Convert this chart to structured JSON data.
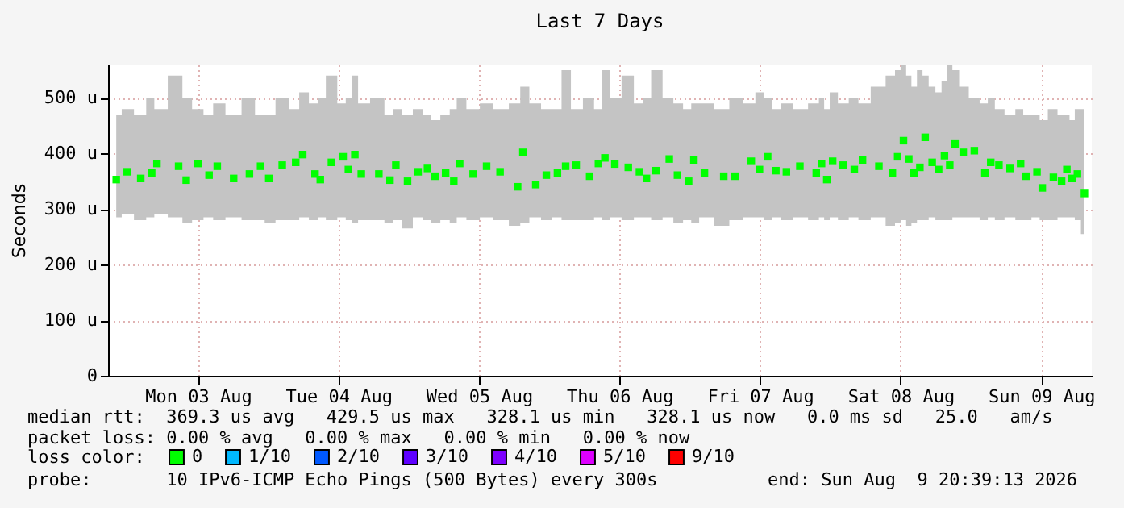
{
  "chart_data": {
    "type": "scatter",
    "title": "Last 7 Days",
    "ylabel": "Seconds",
    "legend_title": "loss color:",
    "legend": "bottom",
    "marker": "square",
    "grid": true,
    "xlim": [
      "2026-08-02T20:39",
      "2026-08-09T20:39"
    ],
    "xticks": [
      {
        "value": "2026-08-03T12:00",
        "label": "Mon 03 Aug"
      },
      {
        "value": "2026-08-04T12:00",
        "label": "Tue 04 Aug"
      },
      {
        "value": "2026-08-05T12:00",
        "label": "Wed 05 Aug"
      },
      {
        "value": "2026-08-06T12:00",
        "label": "Thu 06 Aug"
      },
      {
        "value": "2026-08-07T12:00",
        "label": "Fri 07 Aug"
      },
      {
        "value": "2026-08-08T12:00",
        "label": "Sat 08 Aug"
      },
      {
        "value": "2026-08-09T12:00",
        "label": "Sun 09 Aug"
      }
    ],
    "ylim": [
      0,
      560
    ],
    "yticks": [
      0,
      {
        "value": 100,
        "label": "100 u"
      },
      {
        "value": 200,
        "label": "200 u"
      },
      {
        "value": 300,
        "label": "300 u"
      },
      {
        "value": 400,
        "label": "400 u"
      },
      {
        "value": 500,
        "label": "500 u"
      }
    ],
    "x": [
      "2026-08-02T22:03",
      "2026-08-02T23:55",
      "2026-08-03T02:14",
      "2026-08-03T04:06",
      "2026-08-03T05:00",
      "2026-08-03T08:42",
      "2026-08-03T10:00",
      "2026-08-03T12:00",
      "2026-08-03T13:54",
      "2026-08-03T15:18",
      "2026-08-03T18:06",
      "2026-08-03T20:48",
      "2026-08-03T22:42",
      "2026-08-04T00:06",
      "2026-08-04T02:24",
      "2026-08-04T04:42",
      "2026-08-04T05:54",
      "2026-08-04T08:00",
      "2026-08-04T08:54",
      "2026-08-04T10:48",
      "2026-08-04T12:48",
      "2026-08-04T13:42",
      "2026-08-04T14:48",
      "2026-08-04T15:54",
      "2026-08-04T18:54",
      "2026-08-04T20:48",
      "2026-08-04T21:48",
      "2026-08-04T23:48",
      "2026-08-05T01:36",
      "2026-08-05T03:12",
      "2026-08-05T04:30",
      "2026-08-05T06:18",
      "2026-08-05T07:42",
      "2026-08-05T08:42",
      "2026-08-05T11:00",
      "2026-08-05T13:18",
      "2026-08-05T15:36",
      "2026-08-05T18:36",
      "2026-08-05T19:30",
      "2026-08-05T21:42",
      "2026-08-05T23:30",
      "2026-08-06T01:24",
      "2026-08-06T02:48",
      "2026-08-06T04:36",
      "2026-08-06T06:54",
      "2026-08-06T08:24",
      "2026-08-06T09:30",
      "2026-08-06T11:12",
      "2026-08-06T13:30",
      "2026-08-06T15:24",
      "2026-08-06T16:36",
      "2026-08-06T18:12",
      "2026-08-06T20:30",
      "2026-08-06T21:54",
      "2026-08-06T23:48",
      "2026-08-07T00:42",
      "2026-08-07T02:30",
      "2026-08-07T05:48",
      "2026-08-07T07:42",
      "2026-08-07T10:30",
      "2026-08-07T11:54",
      "2026-08-07T13:18",
      "2026-08-07T14:42",
      "2026-08-07T16:30",
      "2026-08-07T18:48",
      "2026-08-07T21:36",
      "2026-08-07T22:30",
      "2026-08-07T23:24",
      "2026-08-08T00:24",
      "2026-08-08T02:12",
      "2026-08-08T04:06",
      "2026-08-08T05:30",
      "2026-08-08T08:18",
      "2026-08-08T10:36",
      "2026-08-08T11:30",
      "2026-08-08T12:30",
      "2026-08-08T13:24",
      "2026-08-08T14:18",
      "2026-08-08T15:18",
      "2026-08-08T16:12",
      "2026-08-08T17:24",
      "2026-08-08T18:30",
      "2026-08-08T19:30",
      "2026-08-08T20:24",
      "2026-08-08T21:18",
      "2026-08-08T22:42",
      "2026-08-09T00:36",
      "2026-08-09T02:24",
      "2026-08-09T03:24",
      "2026-08-09T04:48",
      "2026-08-09T06:42",
      "2026-08-09T08:30",
      "2026-08-09T09:24",
      "2026-08-09T11:18",
      "2026-08-09T12:12",
      "2026-08-09T14:06",
      "2026-08-09T15:30",
      "2026-08-09T16:24",
      "2026-08-09T17:18",
      "2026-08-09T18:12",
      "2026-08-09T19:24"
    ],
    "series": [
      {
        "name": "0",
        "color": "#00ff00",
        "values": [
          353,
          367,
          355,
          365,
          382,
          377,
          352,
          382,
          361,
          377,
          355,
          363,
          377,
          355,
          379,
          384,
          398,
          363,
          353,
          384,
          394,
          371,
          398,
          363,
          363,
          352,
          379,
          350,
          367,
          373,
          359,
          365,
          350,
          382,
          363,
          377,
          367,
          340,
          402,
          344,
          361,
          365,
          377,
          379,
          359,
          382,
          392,
          381,
          375,
          367,
          355,
          369,
          390,
          361,
          350,
          388,
          365,
          359,
          359,
          386,
          371,
          394,
          369,
          367,
          377,
          365,
          382,
          353,
          386,
          379,
          371,
          388,
          377,
          365,
          394,
          423,
          390,
          365,
          375,
          429,
          384,
          371,
          396,
          379,
          417,
          402,
          405,
          365,
          384,
          379,
          373,
          382,
          359,
          367,
          338,
          357,
          350,
          371,
          355,
          363,
          328
        ],
        "lower": [
          285,
          290,
          280,
          285,
          290,
          285,
          275,
          280,
          285,
          280,
          285,
          280,
          280,
          275,
          280,
          280,
          285,
          280,
          285,
          280,
          285,
          280,
          275,
          280,
          280,
          275,
          280,
          265,
          285,
          280,
          275,
          280,
          275,
          285,
          280,
          285,
          280,
          270,
          275,
          285,
          280,
          285,
          280,
          280,
          280,
          285,
          280,
          285,
          280,
          285,
          285,
          280,
          285,
          275,
          280,
          275,
          285,
          270,
          280,
          285,
          285,
          280,
          285,
          280,
          285,
          280,
          285,
          280,
          285,
          280,
          285,
          280,
          285,
          270,
          275,
          280,
          270,
          275,
          280,
          280,
          285,
          280,
          280,
          280,
          285,
          285,
          285,
          280,
          285,
          280,
          285,
          280,
          280,
          285,
          280,
          280,
          285,
          285,
          285,
          280,
          255
        ],
        "upper": [
          470,
          480,
          470,
          500,
          480,
          540,
          500,
          480,
          470,
          490,
          470,
          500,
          470,
          470,
          500,
          480,
          510,
          490,
          500,
          540,
          490,
          500,
          540,
          490,
          500,
          470,
          480,
          470,
          480,
          470,
          460,
          470,
          480,
          500,
          480,
          490,
          480,
          490,
          520,
          490,
          480,
          480,
          550,
          480,
          500,
          480,
          550,
          500,
          540,
          490,
          500,
          550,
          500,
          490,
          480,
          490,
          490,
          480,
          500,
          490,
          510,
          500,
          480,
          490,
          480,
          490,
          500,
          480,
          510,
          490,
          500,
          490,
          520,
          540,
          550,
          560,
          540,
          520,
          550,
          540,
          520,
          510,
          530,
          560,
          550,
          520,
          500,
          490,
          500,
          480,
          470,
          480,
          470,
          470,
          460,
          480,
          470,
          470,
          460,
          480,
          480
        ]
      },
      {
        "name": "1/10",
        "color": "#00b8ff",
        "values": [
          null,
          null,
          null,
          null,
          null,
          null,
          null,
          null,
          null,
          null,
          null,
          null,
          null,
          null,
          null,
          null,
          null,
          null,
          null,
          null,
          null,
          null,
          null,
          null,
          null,
          null,
          null,
          null,
          null,
          null,
          null,
          null,
          null,
          null,
          null,
          null,
          null,
          null,
          null,
          null,
          null,
          null,
          null,
          null,
          null,
          null,
          null,
          null,
          null,
          null,
          null,
          null,
          null,
          null,
          null,
          null,
          null,
          null,
          null,
          null,
          null,
          null,
          null,
          null,
          null,
          null,
          null,
          null,
          null,
          null,
          null,
          null,
          null,
          null,
          null,
          null,
          null,
          null,
          null,
          null,
          null,
          null,
          null,
          null,
          null,
          null,
          null,
          null,
          null,
          null,
          null,
          null,
          null,
          null,
          null,
          null,
          null,
          null,
          null,
          null,
          null
        ]
      },
      {
        "name": "2/10",
        "color": "#0059ff",
        "values": [
          null,
          null,
          null,
          null,
          null,
          null,
          null,
          null,
          null,
          null,
          null,
          null,
          null,
          null,
          null,
          null,
          null,
          null,
          null,
          null,
          null,
          null,
          null,
          null,
          null,
          null,
          null,
          null,
          null,
          null,
          null,
          null,
          null,
          null,
          null,
          null,
          null,
          null,
          null,
          null,
          null,
          null,
          null,
          null,
          null,
          null,
          null,
          null,
          null,
          null,
          null,
          null,
          null,
          null,
          null,
          null,
          null,
          null,
          null,
          null,
          null,
          null,
          null,
          null,
          null,
          null,
          null,
          null,
          null,
          null,
          null,
          null,
          null,
          null,
          null,
          null,
          null,
          null,
          null,
          null,
          null,
          null,
          null,
          null,
          null,
          null,
          null,
          null,
          null,
          null,
          null,
          null,
          null,
          null,
          null,
          null,
          null,
          null,
          null,
          null,
          null
        ]
      },
      {
        "name": "3/10",
        "color": "#5e00ff",
        "values": [
          null,
          null,
          null,
          null,
          null,
          null,
          null,
          null,
          null,
          null,
          null,
          null,
          null,
          null,
          null,
          null,
          null,
          null,
          null,
          null,
          null,
          null,
          null,
          null,
          null,
          null,
          null,
          null,
          null,
          null,
          null,
          null,
          null,
          null,
          null,
          null,
          null,
          null,
          null,
          null,
          null,
          null,
          null,
          null,
          null,
          null,
          null,
          null,
          null,
          null,
          null,
          null,
          null,
          null,
          null,
          null,
          null,
          null,
          null,
          null,
          null,
          null,
          null,
          null,
          null,
          null,
          null,
          null,
          null,
          null,
          null,
          null,
          null,
          null,
          null,
          null,
          null,
          null,
          null,
          null,
          null,
          null,
          null,
          null,
          null,
          null,
          null,
          null,
          null,
          null,
          null,
          null,
          null,
          null,
          null,
          null,
          null,
          null,
          null,
          null,
          null
        ]
      },
      {
        "name": "4/10",
        "color": "#7e00ff",
        "values": [
          null,
          null,
          null,
          null,
          null,
          null,
          null,
          null,
          null,
          null,
          null,
          null,
          null,
          null,
          null,
          null,
          null,
          null,
          null,
          null,
          null,
          null,
          null,
          null,
          null,
          null,
          null,
          null,
          null,
          null,
          null,
          null,
          null,
          null,
          null,
          null,
          null,
          null,
          null,
          null,
          null,
          null,
          null,
          null,
          null,
          null,
          null,
          null,
          null,
          null,
          null,
          null,
          null,
          null,
          null,
          null,
          null,
          null,
          null,
          null,
          null,
          null,
          null,
          null,
          null,
          null,
          null,
          null,
          null,
          null,
          null,
          null,
          null,
          null,
          null,
          null,
          null,
          null,
          null,
          null,
          null,
          null,
          null,
          null,
          null,
          null,
          null,
          null,
          null,
          null,
          null,
          null,
          null,
          null,
          null,
          null,
          null,
          null,
          null,
          null,
          null
        ]
      },
      {
        "name": "5/10",
        "color": "#dd00ff",
        "values": [
          null,
          null,
          null,
          null,
          null,
          null,
          null,
          null,
          null,
          null,
          null,
          null,
          null,
          null,
          null,
          null,
          null,
          null,
          null,
          null,
          null,
          null,
          null,
          null,
          null,
          null,
          null,
          null,
          null,
          null,
          null,
          null,
          null,
          null,
          null,
          null,
          null,
          null,
          null,
          null,
          null,
          null,
          null,
          null,
          null,
          null,
          null,
          null,
          null,
          null,
          null,
          null,
          null,
          null,
          null,
          null,
          null,
          null,
          null,
          null,
          null,
          null,
          null,
          null,
          null,
          null,
          null,
          null,
          null,
          null,
          null,
          null,
          null,
          null,
          null,
          null,
          null,
          null,
          null,
          null,
          null,
          null,
          null,
          null,
          null,
          null,
          null,
          null,
          null,
          null,
          null,
          null,
          null,
          null,
          null,
          null,
          null,
          null,
          null,
          null,
          null
        ]
      },
      {
        "name": "9/10",
        "color": "#ff0000",
        "values": [
          null,
          null,
          null,
          null,
          null,
          null,
          null,
          null,
          null,
          null,
          null,
          null,
          null,
          null,
          null,
          null,
          null,
          null,
          null,
          null,
          null,
          null,
          null,
          null,
          null,
          null,
          null,
          null,
          null,
          null,
          null,
          null,
          null,
          null,
          null,
          null,
          null,
          null,
          null,
          null,
          null,
          null,
          null,
          null,
          null,
          null,
          null,
          null,
          null,
          null,
          null,
          null,
          null,
          null,
          null,
          null,
          null,
          null,
          null,
          null,
          null,
          null,
          null,
          null,
          null,
          null,
          null,
          null,
          null,
          null,
          null,
          null,
          null,
          null,
          null,
          null,
          null,
          null,
          null,
          null,
          null,
          null,
          null,
          null,
          null,
          null,
          null,
          null,
          null,
          null,
          null,
          null,
          null,
          null,
          null,
          null,
          null,
          null,
          null,
          null,
          null
        ]
      }
    ],
    "annotations": [
      "median rtt:  369.3 us avg   429.5 us max   328.1 us min   328.1 us now   0.0 ms sd   25.0   am/s",
      "packet loss: 0.00 % avg   0.00 % max   0.00 % min   0.00 % now",
      "probe:       10 IPv6-ICMP Echo Pings (500 Bytes) every 300s",
      "end: Sun Aug  9 20:39:13 2026"
    ]
  }
}
